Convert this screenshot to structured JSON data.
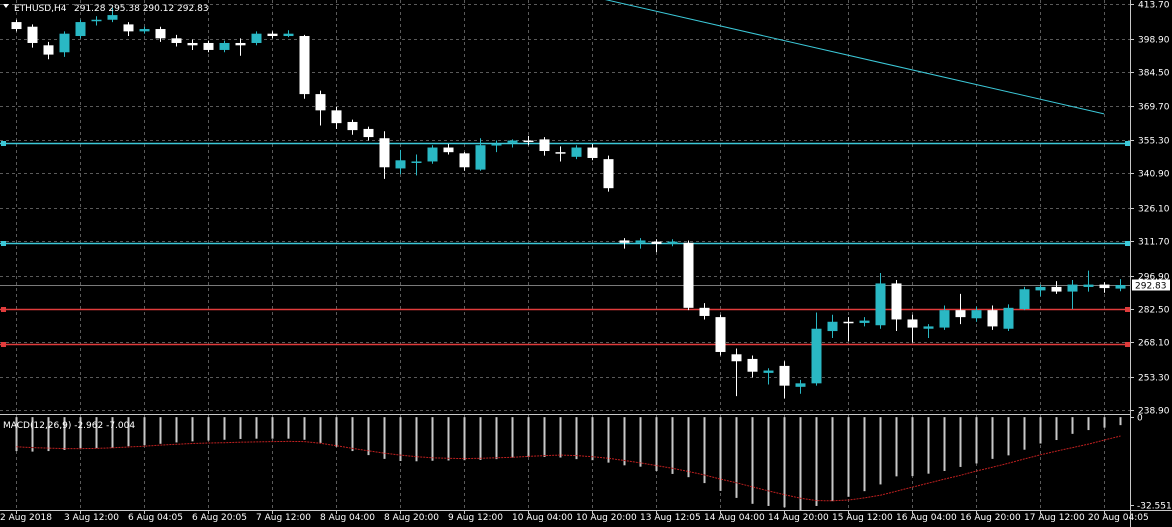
{
  "header": {
    "symbol": "ETHUSD,H4",
    "ohlc": "291.28 295.38 290.12 292.83",
    "macd_label": "MACD(12,26,9) -2.962 -7.004"
  },
  "colors": {
    "background": "#000000",
    "grid": "#5a5a5a",
    "bull": "#2ab8c4",
    "bear": "#ffffff",
    "level_cyan": "#3cc8d8",
    "level_red": "#e03c3c",
    "trendline": "#3cc8d8",
    "signal": "#c02020",
    "histogram": "#c8c8c8",
    "price_tag_bg": "#ffffff",
    "price_tag_fg": "#000000"
  },
  "chart_data": {
    "type": "candlestick",
    "symbol": "ETHUSD",
    "timeframe": "H4",
    "current_price": "292.83",
    "price_axis_ticks": [
      "413.70",
      "398.90",
      "384.50",
      "369.70",
      "355.30",
      "340.90",
      "326.10",
      "311.70",
      "296.90",
      "282.50",
      "268.10",
      "253.30",
      "238.90"
    ],
    "price_ticks": [
      413.7,
      398.9,
      384.5,
      369.7,
      355.3,
      340.9,
      326.1,
      311.7,
      296.9,
      282.5,
      268.1,
      253.3,
      238.9
    ],
    "ylim": [
      237.3,
      415.5
    ],
    "time_labels": [
      "2 Aug 2018",
      "3 Aug 12:00",
      "6 Aug 04:05",
      "6 Aug 20:05",
      "7 Aug 12:00",
      "8 Aug 04:00",
      "8 Aug 20:00",
      "9 Aug 12:00",
      "10 Aug 04:00",
      "10 Aug 20:00",
      "13 Aug 12:05",
      "14 Aug 04:00",
      "14 Aug 20:00",
      "15 Aug 12:00",
      "16 Aug 04:00",
      "16 Aug 20:00",
      "17 Aug 12:00",
      "20 Aug 04:05"
    ],
    "time_label_bars": [
      0,
      4,
      8,
      12,
      16,
      20,
      24,
      28,
      32,
      36,
      40,
      44,
      48,
      52,
      56,
      60,
      64,
      68
    ],
    "horizontal_levels": [
      {
        "price": 354.0,
        "color": "cyan"
      },
      {
        "price": 311.0,
        "color": "cyan"
      },
      {
        "price": 282.5,
        "color": "red"
      },
      {
        "price": 267.5,
        "color": "red"
      }
    ],
    "trendline": {
      "from": {
        "bar": 36,
        "price": 417.0
      },
      "to": {
        "bar": 68,
        "price": 366.5
      }
    },
    "candles": [
      {
        "o": 406.0,
        "h": 407.0,
        "l": 402.0,
        "c": 403.0
      },
      {
        "o": 404.0,
        "h": 405.0,
        "l": 395.0,
        "c": 397.0
      },
      {
        "o": 396.0,
        "h": 397.5,
        "l": 390.0,
        "c": 392.0
      },
      {
        "o": 393.0,
        "h": 402.0,
        "l": 391.0,
        "c": 401.0
      },
      {
        "o": 400.0,
        "h": 407.0,
        "l": 399.0,
        "c": 406.0
      },
      {
        "o": 407.0,
        "h": 408.5,
        "l": 404.5,
        "c": 407.0
      },
      {
        "o": 407.0,
        "h": 412.0,
        "l": 406.0,
        "c": 409.0
      },
      {
        "o": 405.0,
        "h": 406.0,
        "l": 400.0,
        "c": 402.0
      },
      {
        "o": 402.0,
        "h": 404.0,
        "l": 401.0,
        "c": 403.0
      },
      {
        "o": 403.0,
        "h": 404.0,
        "l": 397.5,
        "c": 399.0
      },
      {
        "o": 399.0,
        "h": 400.5,
        "l": 395.5,
        "c": 397.0
      },
      {
        "o": 397.0,
        "h": 398.5,
        "l": 394.0,
        "c": 396.0
      },
      {
        "o": 397.0,
        "h": 398.0,
        "l": 393.0,
        "c": 394.0
      },
      {
        "o": 394.0,
        "h": 398.0,
        "l": 393.0,
        "c": 397.0
      },
      {
        "o": 397.0,
        "h": 399.0,
        "l": 391.5,
        "c": 396.0
      },
      {
        "o": 397.0,
        "h": 402.0,
        "l": 396.0,
        "c": 401.0
      },
      {
        "o": 401.0,
        "h": 402.0,
        "l": 399.0,
        "c": 400.0
      },
      {
        "o": 400.0,
        "h": 402.5,
        "l": 399.5,
        "c": 401.0
      },
      {
        "o": 400.0,
        "h": 400.5,
        "l": 373.0,
        "c": 375.0
      },
      {
        "o": 375.0,
        "h": 376.5,
        "l": 361.5,
        "c": 368.0
      },
      {
        "o": 368.0,
        "h": 369.5,
        "l": 360.0,
        "c": 362.5
      },
      {
        "o": 363.0,
        "h": 364.0,
        "l": 357.5,
        "c": 359.5
      },
      {
        "o": 360.0,
        "h": 361.0,
        "l": 355.0,
        "c": 356.5
      },
      {
        "o": 356.0,
        "h": 359.0,
        "l": 338.5,
        "c": 343.5
      },
      {
        "o": 343.0,
        "h": 351.0,
        "l": 340.5,
        "c": 346.5
      },
      {
        "o": 346.0,
        "h": 349.0,
        "l": 340.0,
        "c": 346.0
      },
      {
        "o": 346.0,
        "h": 353.0,
        "l": 345.0,
        "c": 352.0
      },
      {
        "o": 352.0,
        "h": 353.5,
        "l": 349.0,
        "c": 350.0
      },
      {
        "o": 349.5,
        "h": 350.0,
        "l": 342.0,
        "c": 343.5
      },
      {
        "o": 342.5,
        "h": 356.0,
        "l": 342.0,
        "c": 353.0
      },
      {
        "o": 353.0,
        "h": 355.0,
        "l": 350.0,
        "c": 353.5
      },
      {
        "o": 354.0,
        "h": 355.5,
        "l": 352.0,
        "c": 355.0
      },
      {
        "o": 355.0,
        "h": 357.0,
        "l": 353.0,
        "c": 354.5
      },
      {
        "o": 355.5,
        "h": 356.5,
        "l": 348.5,
        "c": 350.5
      },
      {
        "o": 350.0,
        "h": 352.5,
        "l": 346.0,
        "c": 349.5
      },
      {
        "o": 348.0,
        "h": 353.0,
        "l": 347.0,
        "c": 352.0
      },
      {
        "o": 352.0,
        "h": 353.5,
        "l": 346.5,
        "c": 347.5
      },
      {
        "o": 347.0,
        "h": 348.5,
        "l": 333.0,
        "c": 334.5
      },
      {
        "o": 312.0,
        "h": 313.0,
        "l": 308.5,
        "c": 311.0
      },
      {
        "o": 311.0,
        "h": 313.0,
        "l": 308.5,
        "c": 312.0
      },
      {
        "o": 311.5,
        "h": 312.5,
        "l": 307.0,
        "c": 310.5
      },
      {
        "o": 310.5,
        "h": 312.5,
        "l": 309.5,
        "c": 311.5
      },
      {
        "o": 311.0,
        "h": 312.0,
        "l": 282.0,
        "c": 283.0
      },
      {
        "o": 283.0,
        "h": 285.0,
        "l": 278.0,
        "c": 279.5
      },
      {
        "o": 279.0,
        "h": 280.0,
        "l": 262.5,
        "c": 264.0
      },
      {
        "o": 263.0,
        "h": 265.5,
        "l": 245.0,
        "c": 260.0
      },
      {
        "o": 261.0,
        "h": 262.5,
        "l": 253.0,
        "c": 255.5
      },
      {
        "o": 255.0,
        "h": 257.0,
        "l": 250.0,
        "c": 256.0
      },
      {
        "o": 258.0,
        "h": 260.0,
        "l": 244.0,
        "c": 249.5
      },
      {
        "o": 249.0,
        "h": 252.0,
        "l": 246.0,
        "c": 250.5
      },
      {
        "o": 250.5,
        "h": 281.0,
        "l": 249.5,
        "c": 274.0
      },
      {
        "o": 273.0,
        "h": 280.0,
        "l": 270.0,
        "c": 277.0
      },
      {
        "o": 277.0,
        "h": 279.0,
        "l": 268.5,
        "c": 276.5
      },
      {
        "o": 276.5,
        "h": 279.0,
        "l": 275.0,
        "c": 277.5
      },
      {
        "o": 275.5,
        "h": 298.0,
        "l": 274.0,
        "c": 293.5
      },
      {
        "o": 293.5,
        "h": 295.0,
        "l": 273.0,
        "c": 278.0
      },
      {
        "o": 278.0,
        "h": 280.0,
        "l": 268.0,
        "c": 274.5
      },
      {
        "o": 274.0,
        "h": 276.0,
        "l": 270.0,
        "c": 275.0
      },
      {
        "o": 274.5,
        "h": 284.0,
        "l": 273.5,
        "c": 282.0
      },
      {
        "o": 282.0,
        "h": 289.0,
        "l": 276.0,
        "c": 279.0
      },
      {
        "o": 278.5,
        "h": 283.5,
        "l": 277.0,
        "c": 282.0
      },
      {
        "o": 282.0,
        "h": 284.0,
        "l": 273.5,
        "c": 275.0
      },
      {
        "o": 274.0,
        "h": 284.5,
        "l": 273.0,
        "c": 283.0
      },
      {
        "o": 282.5,
        "h": 292.0,
        "l": 282.0,
        "c": 291.0
      },
      {
        "o": 290.5,
        "h": 293.0,
        "l": 288.0,
        "c": 292.0
      },
      {
        "o": 292.0,
        "h": 294.5,
        "l": 289.0,
        "c": 290.0
      },
      {
        "o": 290.0,
        "h": 295.0,
        "l": 282.5,
        "c": 293.0
      },
      {
        "o": 292.0,
        "h": 299.0,
        "l": 290.0,
        "c": 293.0
      },
      {
        "o": 293.0,
        "h": 294.0,
        "l": 289.5,
        "c": 291.5
      },
      {
        "o": 291.28,
        "h": 295.38,
        "l": 290.12,
        "c": 292.83
      }
    ],
    "macd": {
      "label": "MACD(12,26,9) -2.962 -7.004",
      "axis_ticks": [
        "0",
        "-32.551"
      ],
      "tick_values": [
        0,
        -32.551
      ],
      "ylim": [
        -34.5,
        0.8
      ],
      "histogram": [
        -12.6,
        -12.8,
        -12.6,
        -12.2,
        -11.9,
        -11.5,
        -11.4,
        -10.8,
        -10.4,
        -9.9,
        -9.4,
        -9.0,
        -8.7,
        -8.4,
        -8.1,
        -8.0,
        -8.0,
        -8.0,
        -8.4,
        -9.6,
        -11.0,
        -12.6,
        -14.1,
        -15.5,
        -16.3,
        -16.4,
        -16.2,
        -16.1,
        -16.0,
        -15.9,
        -15.6,
        -15.0,
        -14.8,
        -14.8,
        -15.0,
        -15.6,
        -16.0,
        -16.9,
        -17.9,
        -18.4,
        -20.0,
        -21.1,
        -22.3,
        -24.5,
        -27.4,
        -30.0,
        -32.2,
        -33.0,
        -33.5,
        -34.5,
        -33.0,
        -31.2,
        -29.6,
        -27.5,
        -25.0,
        -22.0,
        -21.9,
        -21.0,
        -20.0,
        -18.5,
        -17.2,
        -15.5,
        -14.2,
        -12.1,
        -9.8,
        -8.5,
        -6.2,
        -4.8,
        -3.9,
        -2.962
      ],
      "signal": [
        -11.0,
        -11.3,
        -11.5,
        -11.7,
        -11.7,
        -11.6,
        -11.4,
        -11.1,
        -10.8,
        -10.4,
        -10.1,
        -9.8,
        -9.6,
        -9.5,
        -9.3,
        -9.2,
        -9.1,
        -9.0,
        -9.1,
        -9.7,
        -10.6,
        -11.6,
        -12.5,
        -13.4,
        -14.1,
        -14.7,
        -15.1,
        -15.3,
        -15.4,
        -15.3,
        -15.1,
        -14.9,
        -14.6,
        -14.3,
        -14.1,
        -14.3,
        -14.7,
        -15.3,
        -16.1,
        -17.0,
        -18.0,
        -19.0,
        -20.2,
        -21.5,
        -23.0,
        -24.4,
        -25.9,
        -27.4,
        -28.8,
        -30.1,
        -31.0,
        -31.1,
        -30.8,
        -30.0,
        -29.0,
        -27.5,
        -26.0,
        -24.5,
        -23.0,
        -21.6,
        -20.0,
        -18.6,
        -17.1,
        -15.5,
        -14.0,
        -12.6,
        -11.3,
        -10.0,
        -8.5,
        -7.004
      ]
    }
  }
}
